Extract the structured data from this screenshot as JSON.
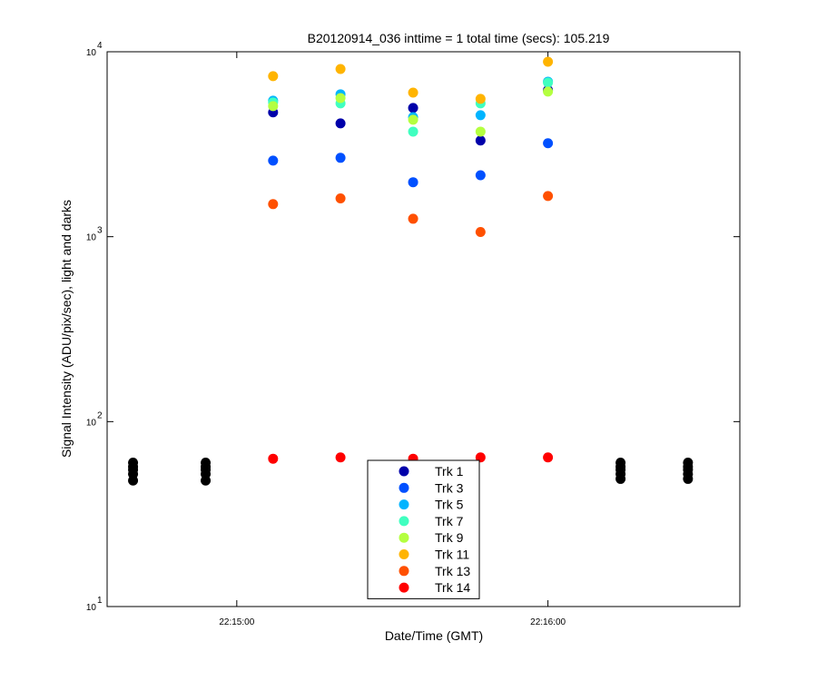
{
  "chart_data": {
    "type": "scatter",
    "title": "B20120914_036 inttime = 1 total time (secs): 105.219",
    "xlabel": "Date/Time (GMT)",
    "ylabel": "Signal Intensity (ADU/pix/sec), light and darks",
    "x": [
      "22:14:40",
      "22:14:54",
      "22:15:07",
      "22:15:20",
      "22:15:34",
      "22:15:47",
      "22:16:00",
      "22:16:14",
      "22:16:27"
    ],
    "xlim": [
      "22:14:35",
      "22:16:37"
    ],
    "xticks": [
      "22:15:00",
      "22:16:00"
    ],
    "ylim": [
      10,
      10000
    ],
    "log_y": true,
    "yticks": [
      {
        "value": 10,
        "label": "10",
        "exponent": "1"
      },
      {
        "value": 100,
        "label": "10",
        "exponent": "2"
      },
      {
        "value": 1000,
        "label": "10",
        "exponent": "3"
      },
      {
        "value": 10000,
        "label": "10",
        "exponent": "4"
      }
    ],
    "legend": "bottom-center",
    "series": [
      {
        "color": "#000000",
        "values": [
          48,
          48,
          null,
          null,
          null,
          null,
          null,
          49,
          49
        ]
      },
      {
        "color": "#000000",
        "values": [
          52,
          52,
          null,
          null,
          null,
          null,
          null,
          52,
          52
        ]
      },
      {
        "color": "#000000",
        "values": [
          55,
          55,
          null,
          null,
          null,
          null,
          null,
          55,
          55
        ]
      },
      {
        "color": "#000000",
        "values": [
          57,
          57,
          null,
          null,
          null,
          null,
          null,
          57,
          57
        ]
      },
      {
        "color": "#000000",
        "values": [
          60,
          60,
          null,
          null,
          null,
          null,
          null,
          60,
          60
        ]
      },
      {
        "name": "Trk 1",
        "color": "#0000aa",
        "values": [
          null,
          null,
          4700,
          4100,
          4970,
          3310,
          6200,
          null,
          null
        ]
      },
      {
        "name": "Trk 3",
        "color": "#0050ff",
        "values": [
          null,
          null,
          2580,
          2670,
          1970,
          2150,
          3200,
          null,
          null
        ]
      },
      {
        "name": "Trk 5",
        "color": "#00b4ff",
        "values": [
          null,
          null,
          5440,
          5890,
          4430,
          4540,
          6890,
          null,
          null
        ]
      },
      {
        "name": "Trk 7",
        "color": "#40ffc0",
        "values": [
          null,
          null,
          5320,
          5260,
          3700,
          5260,
          6810,
          null,
          null
        ]
      },
      {
        "name": "Trk 9",
        "color": "#b4ff40",
        "values": [
          null,
          null,
          5080,
          5620,
          4290,
          3700,
          6090,
          null,
          null
        ]
      },
      {
        "name": "Trk 11",
        "color": "#ffb400",
        "values": [
          null,
          null,
          7380,
          8070,
          6010,
          5560,
          8830,
          null,
          null
        ]
      },
      {
        "name": "Trk 13",
        "color": "#ff5000",
        "values": [
          null,
          null,
          1500,
          1610,
          1250,
          1060,
          1660,
          null,
          null
        ]
      },
      {
        "name": "Trk 14",
        "color": "#ff0000",
        "values": [
          null,
          null,
          63,
          64,
          63,
          64,
          64,
          null,
          null
        ]
      }
    ]
  }
}
